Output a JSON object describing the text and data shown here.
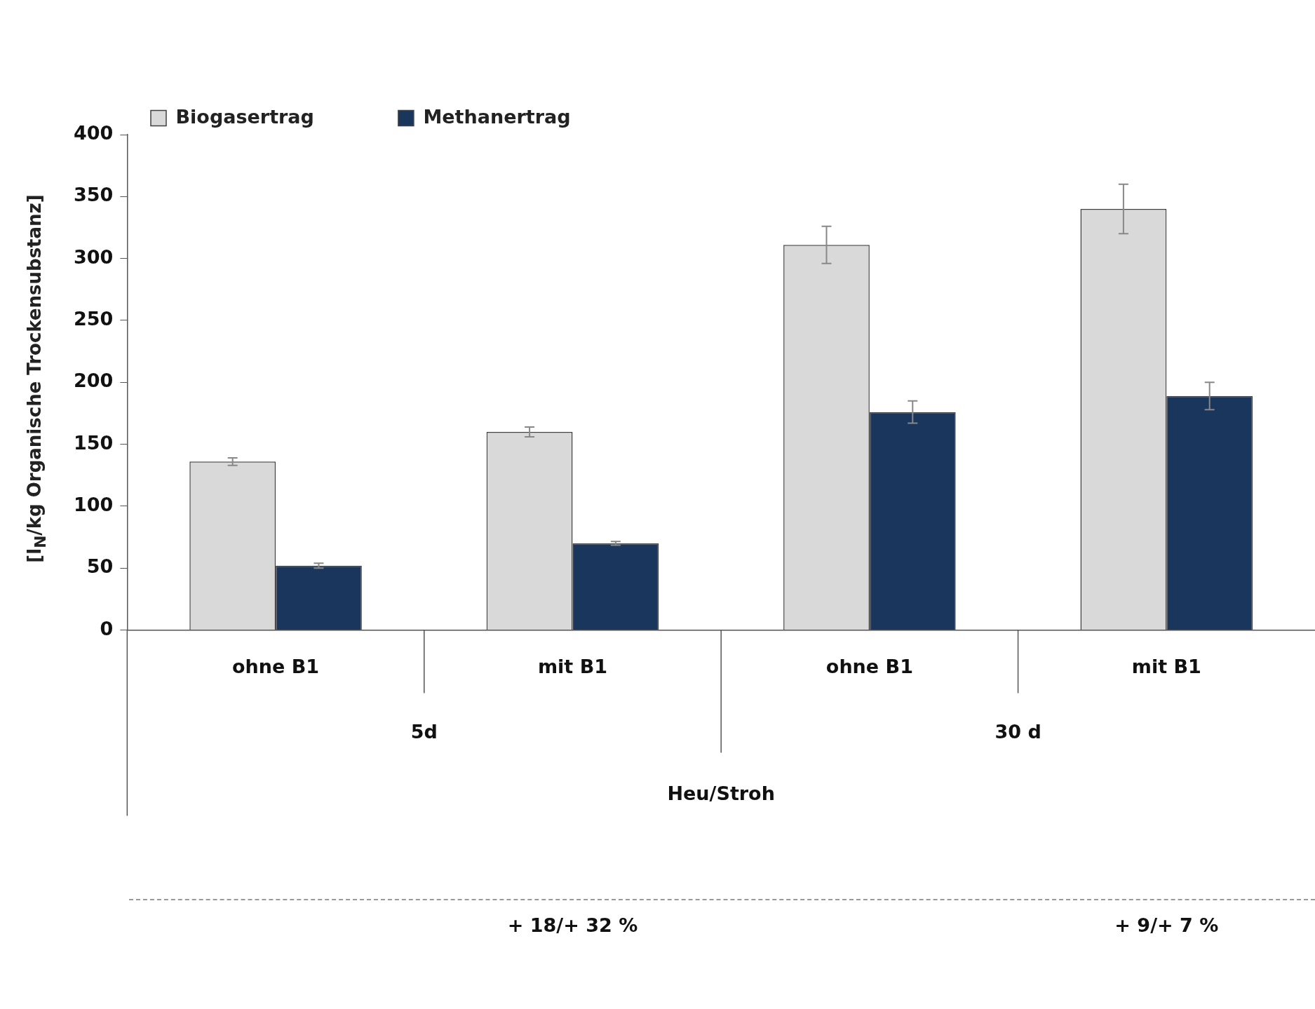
{
  "chart_data": {
    "type": "bar",
    "ylabel": "[l$_{N}$/kg Organische Trockensubstanz]",
    "categories": [
      "ohne B1",
      "mit B1",
      "ohne B1",
      "mit B1"
    ],
    "series": [
      {
        "name": "Biogasertrag",
        "color": "#d9d9d9",
        "values": [
          136,
          160,
          311,
          340
        ],
        "errors": [
          3,
          4,
          15,
          20
        ]
      },
      {
        "name": "Methanertrag",
        "color": "#1b365d",
        "values": [
          52,
          70,
          176,
          189
        ],
        "errors": [
          2,
          1.5,
          9,
          11
        ]
      }
    ],
    "ylim": [
      0,
      400
    ],
    "yticks": [
      0,
      50,
      100,
      150,
      200,
      250,
      300,
      350,
      400
    ],
    "grid": false,
    "legend": "top left",
    "annotations": [
      "5d",
      "30 d",
      "Heu/Stroh",
      "+ 18/+ 32 %",
      "+ 9/+ 7 %"
    ]
  }
}
